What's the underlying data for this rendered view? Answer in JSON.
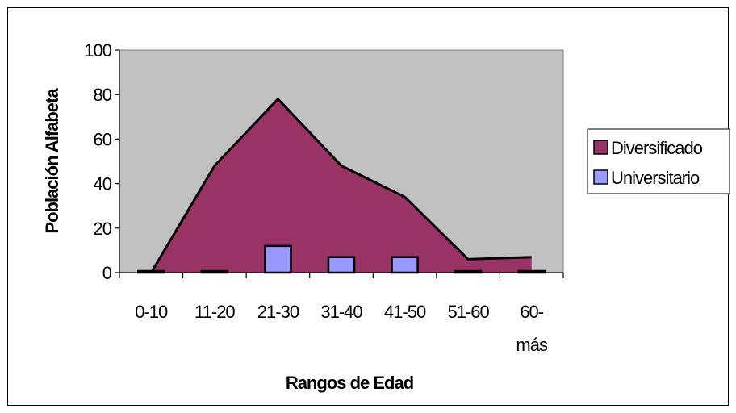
{
  "chart_data": {
    "type": "area",
    "title": "",
    "xlabel": "Rangos de Edad",
    "ylabel": "Población Alfabeta",
    "ylim": [
      0,
      100
    ],
    "yticks": [
      0,
      20,
      40,
      60,
      80,
      100
    ],
    "categories": [
      "0-10",
      "11-20",
      "21-30",
      "31-40",
      "41-50",
      "51-60",
      "60-más"
    ],
    "category_label_lines": [
      [
        "0-10"
      ],
      [
        "11-20"
      ],
      [
        "21-30"
      ],
      [
        "31-40"
      ],
      [
        "41-50"
      ],
      [
        "51-60"
      ],
      [
        "60-",
        "más"
      ]
    ],
    "grid": false,
    "legend_position": "right",
    "plot_background": "#C0C0C0",
    "series": [
      {
        "name": "Diversificado",
        "chart_type": "area",
        "color": "#993366",
        "values": [
          0,
          48,
          78,
          48,
          34,
          6,
          7
        ]
      },
      {
        "name": "Universitario",
        "chart_type": "bar",
        "color": "#9999FF",
        "values": [
          0,
          0,
          12,
          7,
          7,
          0,
          0
        ]
      }
    ]
  }
}
